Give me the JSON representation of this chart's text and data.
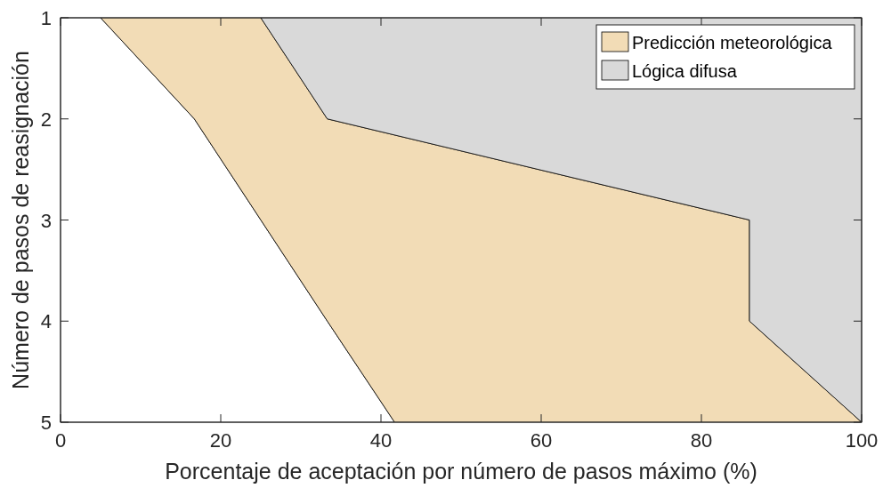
{
  "chart_data": {
    "type": "area",
    "orientation": "horizontal",
    "stacked": true,
    "xlabel": "Porcentaje de aceptación por número de pasos máximo (%)",
    "ylabel": "Número de pasos de reasignación",
    "x": [
      1,
      2,
      3,
      4,
      5
    ],
    "series": [
      {
        "color": "#ffffff",
        "values": [
          5,
          16.7,
          25,
          33.3,
          41.7
        ]
      },
      {
        "name": "Predicción meteorológica",
        "color": "#f2dcb6",
        "values": [
          20,
          16.6,
          61,
          52.7,
          58.3
        ]
      },
      {
        "name": "Lógica difusa",
        "color": "#d9d9d9",
        "values": [
          75,
          66.7,
          14,
          14,
          0
        ]
      }
    ],
    "xlim": [
      0,
      100
    ],
    "xticks": [
      0,
      20,
      40,
      60,
      80,
      100
    ],
    "ylim": [
      5,
      1
    ],
    "yticks": [
      1,
      2,
      3,
      4,
      5
    ],
    "legend": "top right"
  }
}
